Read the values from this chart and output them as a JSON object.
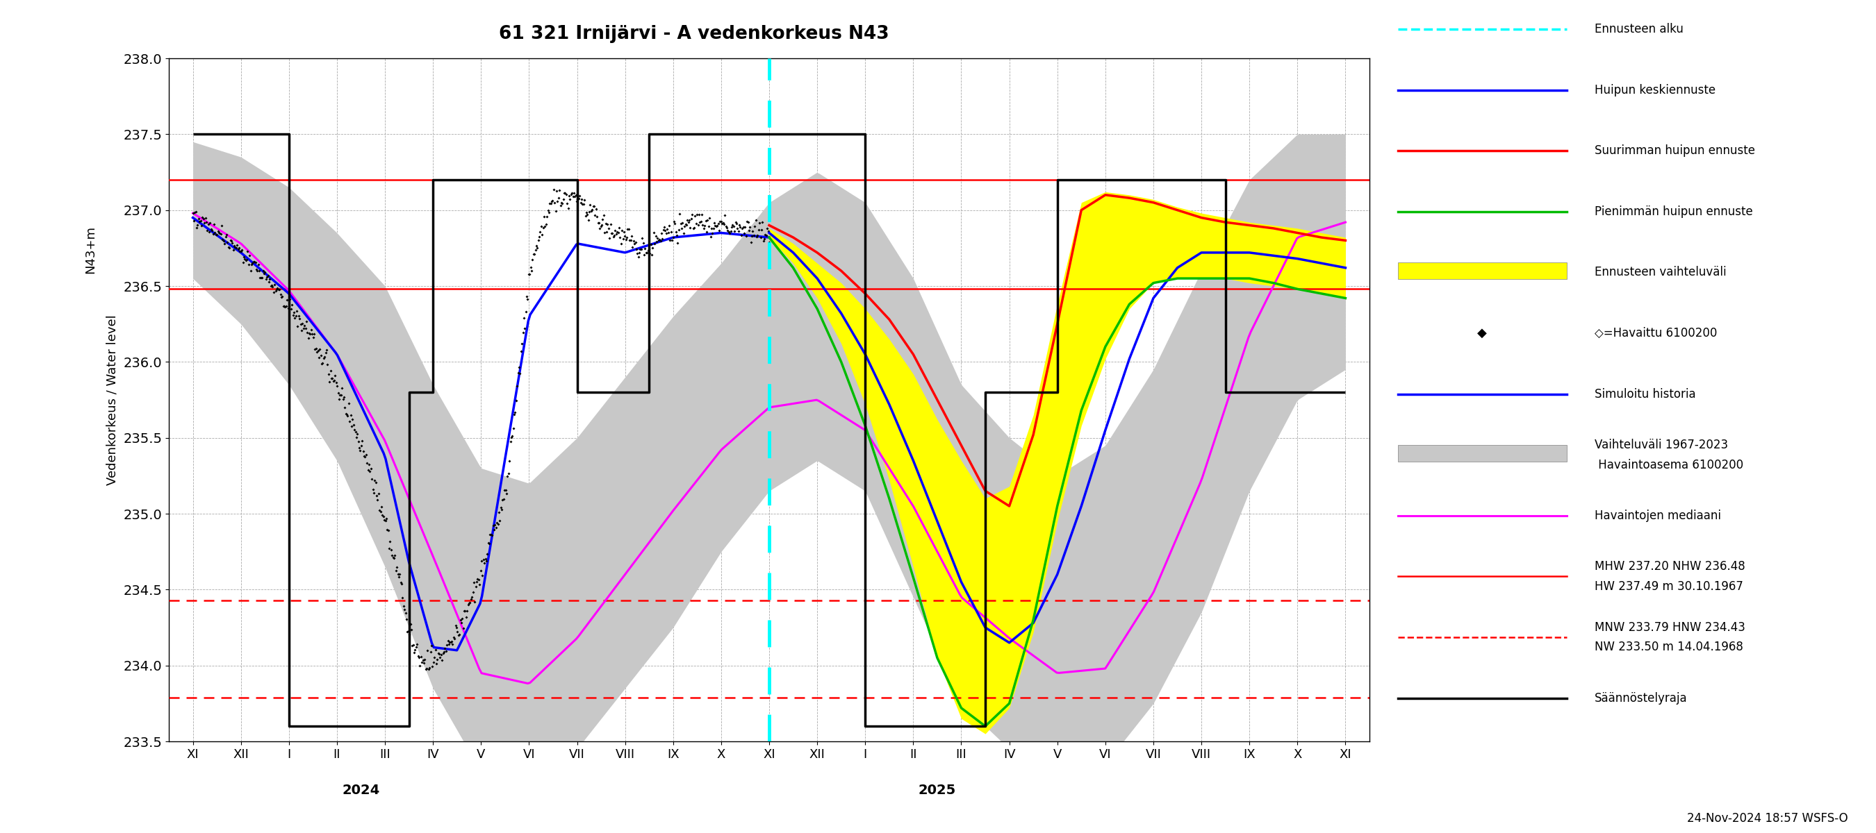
{
  "title": "61 321 Irnijärvi - A vedenkorkeus N43",
  "ylabel_left": "Vedenkorkeus / Water level",
  "ylabel_right": "N43+m",
  "ylim": [
    233.5,
    238.0
  ],
  "yticks": [
    233.5,
    234.0,
    234.5,
    235.0,
    235.5,
    236.0,
    236.5,
    237.0,
    237.5,
    238.0
  ],
  "footnote": "24-Nov-2024 18:57 WSFS-O",
  "red_solid_lines": [
    237.2,
    236.48
  ],
  "red_dashed_lines": [
    234.43,
    233.79
  ],
  "x_tick_labels": [
    "XI",
    "XII",
    "I",
    "II",
    "III",
    "IV",
    "V",
    "VI",
    "VII",
    "VIII",
    "IX",
    "X",
    "XI",
    "XII",
    "I",
    "II",
    "III",
    "IV",
    "V",
    "VI",
    "VII",
    "VIII",
    "IX",
    "X",
    "XI"
  ],
  "x_tick_positions": [
    0,
    1,
    2,
    3,
    4,
    5,
    6,
    7,
    8,
    9,
    10,
    11,
    12,
    13,
    14,
    15,
    16,
    17,
    18,
    19,
    20,
    21,
    22,
    23,
    24
  ],
  "year_label_2024": {
    "text": "2024",
    "x": 3.5
  },
  "year_label_2025": {
    "text": "2025",
    "x": 15.5
  },
  "fc_start_x": 12.0,
  "hist_upper_pts": [
    237.45,
    237.35,
    237.15,
    236.85,
    236.5,
    235.85,
    235.3,
    235.2,
    235.5,
    235.9,
    236.3,
    236.65,
    237.05,
    237.25,
    237.05,
    236.55,
    235.85,
    235.5,
    235.25,
    235.45,
    235.95,
    236.6,
    237.2,
    237.5,
    237.5
  ],
  "hist_lower_pts": [
    236.55,
    236.25,
    235.85,
    235.35,
    234.65,
    233.85,
    233.3,
    233.25,
    233.45,
    233.85,
    234.25,
    234.75,
    235.15,
    235.35,
    235.15,
    234.45,
    233.75,
    233.45,
    233.25,
    233.35,
    233.75,
    234.35,
    235.15,
    235.75,
    235.95
  ],
  "median_pts": [
    236.98,
    236.78,
    236.47,
    236.05,
    235.48,
    234.72,
    233.95,
    233.88,
    234.18,
    234.6,
    235.02,
    235.42,
    235.7,
    235.75,
    235.55,
    235.05,
    234.45,
    234.18,
    233.95,
    233.98,
    234.48,
    235.22,
    236.18,
    236.82,
    236.92
  ],
  "obs_x_pts": [
    0,
    0.5,
    1.0,
    1.5,
    2.0,
    2.5,
    3.0,
    3.5,
    4.0,
    4.3,
    4.5,
    4.7,
    4.9,
    5.1,
    5.5,
    6.0,
    6.5,
    7.0,
    7.2,
    7.5,
    7.7,
    8.0,
    8.3,
    8.5,
    8.8,
    9.2,
    9.5,
    9.8,
    10.2,
    10.5,
    11.0,
    11.5,
    12.0
  ],
  "obs_y_pts": [
    236.97,
    236.85,
    236.72,
    236.57,
    236.38,
    236.15,
    235.85,
    235.45,
    234.95,
    234.58,
    234.2,
    234.08,
    234.02,
    234.05,
    234.2,
    234.62,
    235.1,
    236.55,
    236.82,
    237.05,
    237.1,
    237.08,
    237.0,
    236.92,
    236.85,
    236.78,
    236.72,
    236.85,
    236.9,
    236.92,
    236.9,
    236.88,
    236.85
  ],
  "sim_x_pts": [
    0,
    1,
    2,
    3,
    4,
    4.5,
    5.0,
    5.5,
    6.0,
    7.0,
    8.0,
    9.0,
    10.0,
    11.0,
    12.0
  ],
  "sim_y_pts": [
    236.95,
    236.72,
    236.45,
    236.05,
    235.38,
    234.68,
    234.12,
    234.1,
    234.42,
    236.3,
    236.78,
    236.72,
    236.82,
    236.85,
    236.82
  ],
  "fc_mean_x": [
    12.0,
    12.5,
    13.0,
    13.5,
    14.0,
    14.5,
    15.0,
    15.5,
    16.0,
    16.5,
    17.0,
    17.5,
    18.0,
    18.5,
    19.0,
    19.5,
    20.0,
    20.5,
    21.0,
    21.5,
    22.0,
    22.5,
    23.0,
    23.5,
    24.0
  ],
  "fc_mean_y": [
    236.85,
    236.72,
    236.55,
    236.32,
    236.05,
    235.72,
    235.35,
    234.95,
    234.55,
    234.25,
    234.15,
    234.28,
    234.6,
    235.05,
    235.55,
    236.02,
    236.42,
    236.62,
    236.72,
    236.72,
    236.72,
    236.7,
    236.68,
    236.65,
    236.62
  ],
  "fc_max_x": [
    12.0,
    12.5,
    13.0,
    13.5,
    14.0,
    14.5,
    15.0,
    15.5,
    16.0,
    16.5,
    17.0,
    17.5,
    18.0,
    18.5,
    19.0,
    19.5,
    20.0,
    20.5,
    21.0,
    21.5,
    22.0,
    22.5,
    23.0,
    23.5,
    24.0
  ],
  "fc_max_y": [
    236.9,
    236.82,
    236.72,
    236.6,
    236.45,
    236.28,
    236.05,
    235.75,
    235.45,
    235.15,
    235.05,
    235.52,
    236.25,
    237.0,
    237.1,
    237.08,
    237.05,
    237.0,
    236.95,
    236.92,
    236.9,
    236.88,
    236.85,
    236.82,
    236.8
  ],
  "fc_min_x": [
    12.0,
    12.5,
    13.0,
    13.5,
    14.0,
    14.5,
    15.0,
    15.5,
    16.0,
    16.5,
    17.0,
    17.5,
    18.0,
    18.5,
    19.0,
    19.5,
    20.0,
    20.5,
    21.0,
    21.5,
    22.0,
    22.5,
    23.0,
    23.5,
    24.0
  ],
  "fc_min_y": [
    236.82,
    236.62,
    236.35,
    236.0,
    235.58,
    235.1,
    234.58,
    234.05,
    233.72,
    233.6,
    233.75,
    234.3,
    235.05,
    235.68,
    236.1,
    236.38,
    236.52,
    236.55,
    236.55,
    236.55,
    236.55,
    236.52,
    236.48,
    236.45,
    236.42
  ],
  "fc_upper_x": [
    12.0,
    12.5,
    13.0,
    13.5,
    14.0,
    14.5,
    15.0,
    15.5,
    16.0,
    16.5,
    17.0,
    17.5,
    18.0,
    18.5,
    19.0,
    19.5,
    20.0,
    20.5,
    21.0,
    21.5,
    22.0,
    22.5,
    23.0,
    23.5,
    24.0
  ],
  "fc_upper_y": [
    236.88,
    236.78,
    236.65,
    236.52,
    236.35,
    236.15,
    235.92,
    235.62,
    235.35,
    235.1,
    235.18,
    235.65,
    236.38,
    237.05,
    237.12,
    237.1,
    237.07,
    237.02,
    236.98,
    236.95,
    236.92,
    236.9,
    236.88,
    236.85,
    236.82
  ],
  "fc_lower_x": [
    12.0,
    12.5,
    13.0,
    13.5,
    14.0,
    14.5,
    15.0,
    15.5,
    16.0,
    16.5,
    17.0,
    17.5,
    18.0,
    18.5,
    19.0,
    19.5,
    20.0,
    20.5,
    21.0,
    21.5,
    22.0,
    22.5,
    23.0,
    23.5,
    24.0
  ],
  "fc_lower_y": [
    236.82,
    236.65,
    236.42,
    236.12,
    235.72,
    235.22,
    234.65,
    234.05,
    233.65,
    233.55,
    233.72,
    234.22,
    234.95,
    235.58,
    236.02,
    236.35,
    236.52,
    236.55,
    236.55,
    236.55,
    236.52,
    236.5,
    236.48,
    236.45,
    236.42
  ],
  "reg_x": [
    0,
    2.0,
    2.0,
    4.5,
    4.5,
    5.0,
    5.0,
    8.0,
    8.0,
    9.5,
    9.5,
    12.0,
    12.0,
    14.0,
    14.0,
    16.5,
    16.5,
    18.0,
    18.0,
    21.5,
    21.5,
    24.0
  ],
  "reg_y": [
    237.5,
    237.5,
    233.6,
    233.6,
    235.8,
    235.8,
    237.2,
    237.2,
    235.8,
    235.8,
    237.5,
    237.5,
    237.5,
    237.5,
    233.6,
    233.6,
    235.8,
    235.8,
    237.2,
    237.2,
    235.8,
    235.8
  ]
}
